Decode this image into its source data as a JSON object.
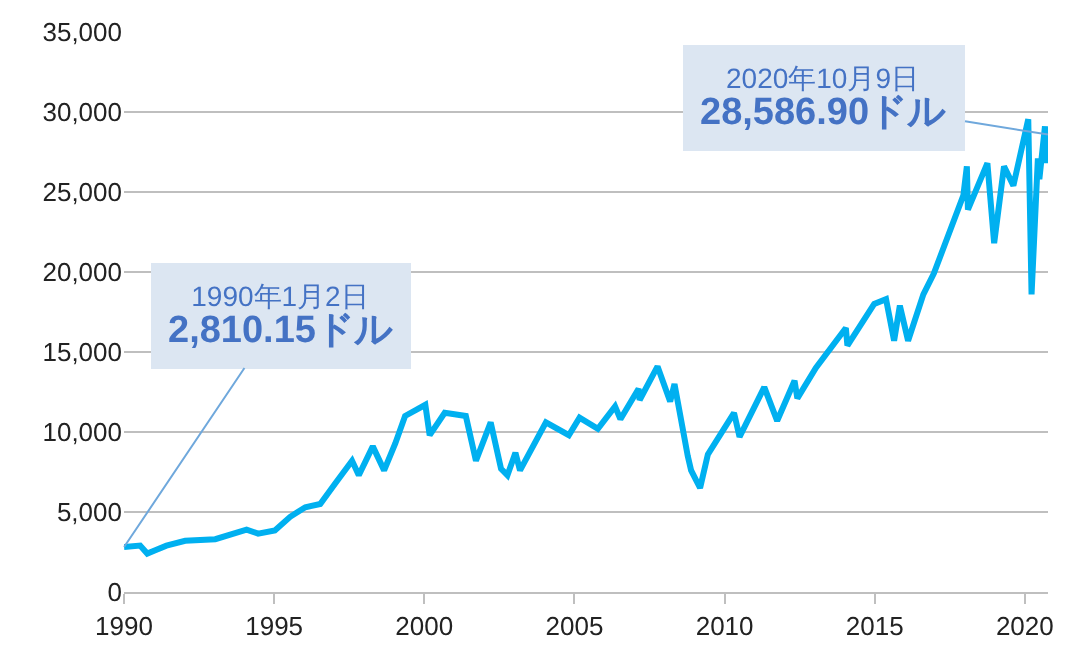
{
  "chart_data": {
    "type": "line",
    "x": [
      "1990-01-02",
      "1990-07-16",
      "1990-10-11",
      "1991-01-09",
      "1991-06-01",
      "1992-01-15",
      "1993-01-15",
      "1994-01-31",
      "1994-06-20",
      "1995-01-10",
      "1995-07-15",
      "1996-01-15",
      "1996-07-15",
      "1997-01-15",
      "1997-08-06",
      "1997-10-27",
      "1998-04-15",
      "1998-08-31",
      "1999-01-15",
      "1999-05-13",
      "2000-01-14",
      "2000-03-07",
      "2000-09-06",
      "2001-05-21",
      "2001-09-21",
      "2002-03-19",
      "2002-07-23",
      "2002-10-09",
      "2003-01-14",
      "2003-03-11",
      "2004-01-20",
      "2004-10-25",
      "2005-03-04",
      "2005-10-13",
      "2006-05-10",
      "2006-07-14",
      "2007-02-20",
      "2007-03-05",
      "2007-10-09",
      "2008-03-10",
      "2008-05-02",
      "2008-10-10",
      "2008-11-20",
      "2009-03-09",
      "2009-06-12",
      "2010-04-26",
      "2010-07-02",
      "2011-04-29",
      "2011-10-03",
      "2012-05-01",
      "2012-06-04",
      "2013-01-15",
      "2014-01-15",
      "2014-02-03",
      "2014-12-26",
      "2015-05-19",
      "2015-08-25",
      "2015-11-03",
      "2016-02-11",
      "2016-08-15",
      "2016-12-20",
      "2017-12-15",
      "2018-01-26",
      "2018-02-08",
      "2018-10-03",
      "2018-12-24",
      "2019-04-23",
      "2019-08-15",
      "2020-02-12",
      "2020-03-23",
      "2020-06-08",
      "2020-06-26",
      "2020-09-02",
      "2020-09-23",
      "2020-10-09"
    ],
    "series": [
      {
        "color": "#00b0f0",
        "values": [
          2810.15,
          2900,
          2400,
          2600,
          2900,
          3200,
          3300,
          3900,
          3650,
          3850,
          4700,
          5300,
          5500,
          6800,
          8200,
          7300,
          9100,
          7600,
          9300,
          11000,
          11700,
          9800,
          11200,
          11000,
          8200,
          10600,
          7700,
          7300,
          8700,
          7600,
          10600,
          9800,
          10900,
          10200,
          11600,
          10800,
          12700,
          12000,
          14100,
          11900,
          13000,
          8500,
          7600,
          6500,
          8600,
          11200,
          9700,
          12800,
          10700,
          13200,
          12100,
          14000,
          16500,
          15400,
          18000,
          18300,
          15700,
          17900,
          15700,
          18600,
          19900,
          24800,
          26600,
          23900,
          26800,
          21800,
          26600,
          25400,
          29550,
          18600,
          27100,
          25800,
          29100,
          26800,
          28586.9
        ]
      }
    ],
    "xlim": [
      "1990-01-01",
      "2020-10-09"
    ],
    "xticks": [
      {
        "value": "1990-01-01",
        "label": "1990"
      },
      {
        "value": "1995-01-01",
        "label": "1995"
      },
      {
        "value": "2000-01-01",
        "label": "2000"
      },
      {
        "value": "2005-01-01",
        "label": "2005"
      },
      {
        "value": "2010-01-01",
        "label": "2010"
      },
      {
        "value": "2015-01-01",
        "label": "2015"
      },
      {
        "value": "2020-01-01",
        "label": "2020"
      }
    ],
    "ylim": [
      0,
      35000
    ],
    "yticks": [
      {
        "value": 0,
        "label": "0"
      },
      {
        "value": 5000,
        "label": "5,000"
      },
      {
        "value": 10000,
        "label": "10,000"
      },
      {
        "value": 15000,
        "label": "15,000"
      },
      {
        "value": 20000,
        "label": "20,000"
      },
      {
        "value": 25000,
        "label": "25,000"
      },
      {
        "value": 30000,
        "label": "30,000"
      },
      {
        "value": 35000,
        "label": "35,000"
      }
    ],
    "grid": "y",
    "marker": "none",
    "line_style": "solid",
    "annotations": [
      {
        "text": "1990年1月2日\n2,810.15ドル",
        "x": "1990-01-02",
        "y": 2810.15
      },
      {
        "text": "2020年10月9日\n28,586.90ドル",
        "x": "2020-10-09",
        "y": 28586.9
      }
    ]
  }
}
